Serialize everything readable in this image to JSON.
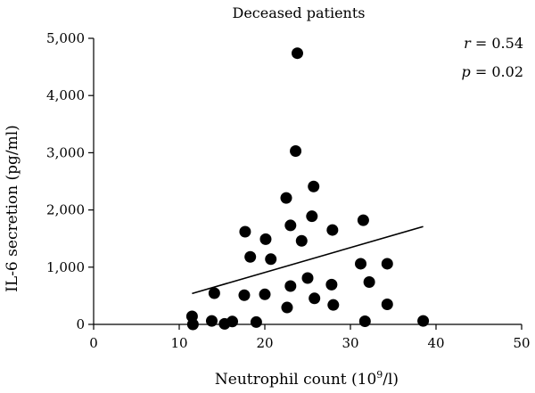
{
  "chart_data": {
    "type": "scatter",
    "title": "Deceased patients",
    "xlabel": "Neutrophil count (10",
    "xlabel_sup": "9",
    "xlabel_end": "/l)",
    "ylabel": "IL-6 secretion (pg/ml)",
    "xlim": [
      0,
      50
    ],
    "ylim": [
      0,
      5000
    ],
    "xticks": [
      0,
      10,
      20,
      30,
      40,
      50
    ],
    "xtick_labels": [
      "0",
      "10",
      "20",
      "30",
      "40",
      "50"
    ],
    "yticks": [
      0,
      1000,
      2000,
      3000,
      4000,
      5000
    ],
    "ytick_labels": [
      "0",
      "1,000",
      "2,000",
      "3,000",
      "4,000",
      "5,000"
    ],
    "grid": false,
    "legend": "none",
    "stats": {
      "r_symbol": "r",
      "r_value": " = 0.54",
      "p_symbol": "p",
      "p_value": " = 0.02"
    },
    "regression_line": {
      "x": [
        11.5,
        38.5
      ],
      "y": [
        540,
        1710
      ]
    },
    "points": [
      {
        "x": 11.5,
        "y": 140
      },
      {
        "x": 11.6,
        "y": 0
      },
      {
        "x": 13.8,
        "y": 60
      },
      {
        "x": 14.1,
        "y": 545
      },
      {
        "x": 15.3,
        "y": 10
      },
      {
        "x": 16.2,
        "y": 50
      },
      {
        "x": 17.6,
        "y": 510
      },
      {
        "x": 17.7,
        "y": 1620
      },
      {
        "x": 18.3,
        "y": 1180
      },
      {
        "x": 19.0,
        "y": 40
      },
      {
        "x": 20.0,
        "y": 525
      },
      {
        "x": 20.1,
        "y": 1490
      },
      {
        "x": 20.7,
        "y": 1140
      },
      {
        "x": 22.5,
        "y": 2210
      },
      {
        "x": 22.6,
        "y": 295
      },
      {
        "x": 23.0,
        "y": 1730
      },
      {
        "x": 23.0,
        "y": 670
      },
      {
        "x": 23.6,
        "y": 3030
      },
      {
        "x": 23.8,
        "y": 4740
      },
      {
        "x": 24.3,
        "y": 1460
      },
      {
        "x": 25.0,
        "y": 810
      },
      {
        "x": 25.5,
        "y": 1890
      },
      {
        "x": 25.7,
        "y": 2410
      },
      {
        "x": 25.8,
        "y": 455
      },
      {
        "x": 27.8,
        "y": 695
      },
      {
        "x": 27.9,
        "y": 1650
      },
      {
        "x": 28.0,
        "y": 340
      },
      {
        "x": 31.2,
        "y": 1060
      },
      {
        "x": 31.5,
        "y": 1820
      },
      {
        "x": 31.7,
        "y": 55
      },
      {
        "x": 32.2,
        "y": 740
      },
      {
        "x": 34.3,
        "y": 1060
      },
      {
        "x": 34.3,
        "y": 350
      },
      {
        "x": 38.5,
        "y": 60
      }
    ]
  }
}
